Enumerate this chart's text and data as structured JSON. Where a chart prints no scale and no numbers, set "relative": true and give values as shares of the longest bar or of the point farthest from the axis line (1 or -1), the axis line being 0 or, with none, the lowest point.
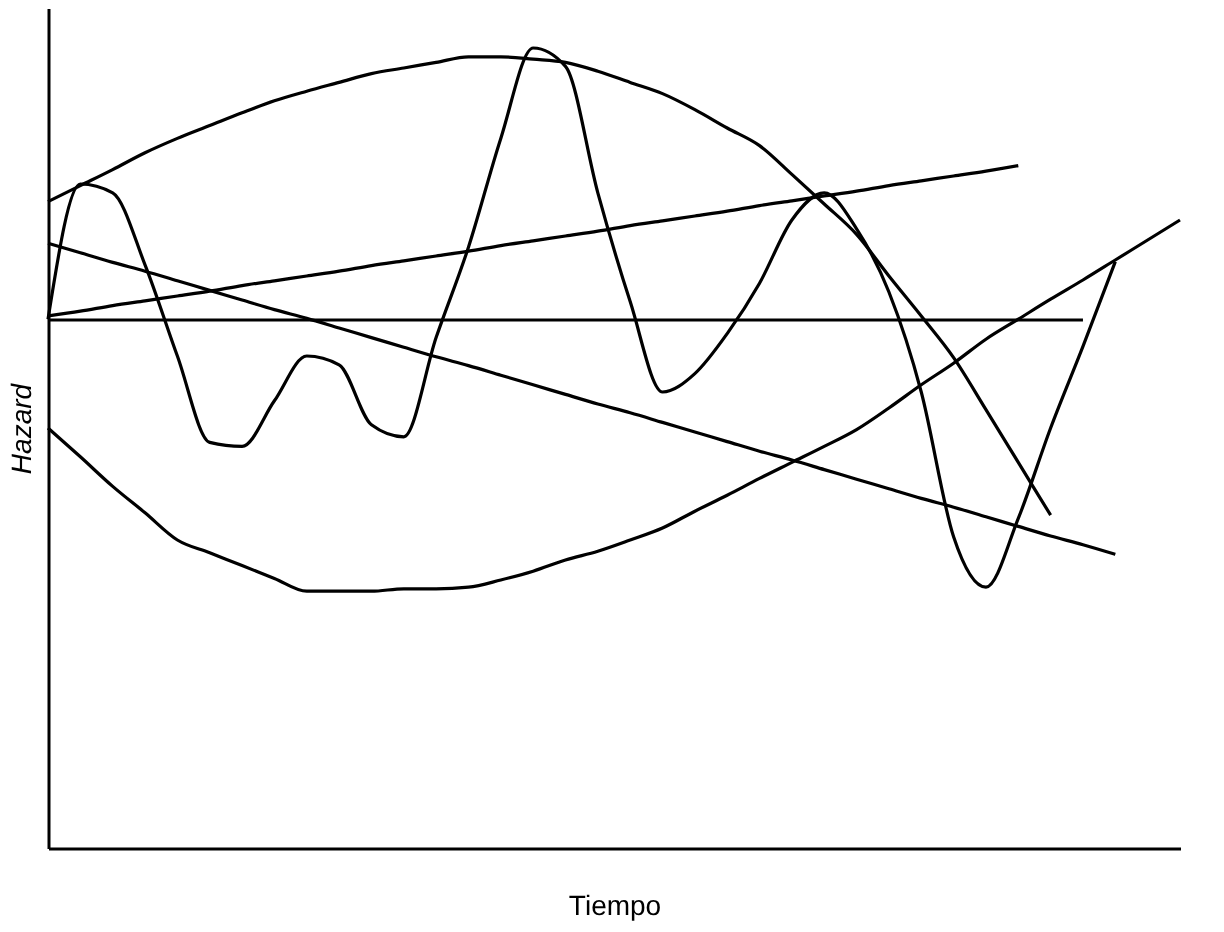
{
  "chart_data": {
    "type": "line",
    "relative": true,
    "xlabel": "Tiempo",
    "ylabel": "Hazard",
    "categories": [
      null,
      null,
      null,
      null,
      null,
      null,
      null,
      null,
      null,
      null,
      null,
      null,
      null,
      null,
      null,
      null,
      null,
      null,
      null,
      null,
      null,
      null,
      null,
      null,
      null,
      null,
      null,
      null,
      null,
      null,
      null,
      null,
      null,
      null,
      null,
      null
    ],
    "series": [
      {
        "color": "#000000",
        "values": [
          0.66,
          0.66,
          0.66,
          0.66,
          0.66,
          0.66,
          0.66,
          0.66,
          0.66,
          0.66,
          0.66,
          0.66,
          0.66,
          0.66,
          0.66,
          0.66,
          0.66,
          0.66,
          0.66,
          0.66,
          0.66,
          0.66,
          0.66,
          0.66,
          0.66,
          0.66,
          0.66,
          0.66,
          0.66,
          0.66,
          0.66,
          0.66,
          0.66,
          null,
          null,
          null
        ]
      },
      {
        "color": "#000000",
        "values": [
          0.665,
          0.671,
          0.678,
          0.684,
          0.69,
          0.696,
          0.703,
          0.709,
          0.715,
          0.721,
          0.728,
          0.734,
          0.74,
          0.746,
          0.753,
          0.759,
          0.765,
          0.771,
          0.778,
          0.784,
          0.79,
          0.796,
          0.803,
          0.809,
          0.815,
          0.821,
          0.828,
          0.834,
          0.84,
          0.846,
          0.853,
          null,
          null,
          null,
          null,
          null
        ]
      },
      {
        "color": "#000000",
        "values": [
          0.756,
          0.744,
          0.732,
          0.721,
          0.709,
          0.697,
          0.685,
          0.673,
          0.662,
          0.65,
          0.638,
          0.626,
          0.614,
          0.603,
          0.591,
          0.579,
          0.567,
          0.555,
          0.544,
          0.532,
          0.52,
          0.508,
          0.496,
          0.485,
          0.473,
          0.461,
          0.449,
          0.437,
          0.426,
          0.414,
          0.402,
          0.39,
          0.379,
          0.367,
          null,
          null
        ]
      },
      {
        "color": "#000000",
        "values": [
          0.808,
          0.828,
          0.848,
          0.869,
          0.887,
          0.903,
          0.919,
          0.934,
          0.946,
          0.957,
          0.968,
          0.975,
          0.982,
          0.989,
          0.989,
          0.986,
          0.982,
          0.971,
          0.957,
          0.943,
          0.923,
          0.9,
          0.878,
          0.842,
          0.805,
          0.767,
          0.715,
          0.665,
          0.613,
          0.548,
          0.482,
          0.416,
          null,
          null,
          null,
          null
        ]
      },
      {
        "color": "#000000",
        "values": [
          0.525,
          0.489,
          0.452,
          0.419,
          0.385,
          0.369,
          0.353,
          0.337,
          0.321,
          0.321,
          0.321,
          0.324,
          0.324,
          0.326,
          0.335,
          0.346,
          0.36,
          0.371,
          0.385,
          0.4,
          0.421,
          0.441,
          0.462,
          0.482,
          0.502,
          0.523,
          0.55,
          0.579,
          0.606,
          0.636,
          0.661,
          0.686,
          0.71,
          0.735,
          0.76,
          0.785
        ]
      },
      {
        "color": "#000000",
        "values": [
          0.661,
          0.83,
          0.819,
          0.729,
          0.615,
          0.507,
          0.502,
          0.559,
          0.615,
          0.604,
          0.529,
          0.514,
          0.638,
          0.751,
          0.887,
          1,
          0.977,
          0.819,
          0.683,
          0.57,
          0.593,
          0.643,
          0.706,
          0.785,
          0.819,
          0.774,
          0.695,
          0.57,
          0.389,
          0.326,
          0.412,
          0.525,
          0.627,
          0.733,
          null,
          null
        ]
      }
    ]
  }
}
